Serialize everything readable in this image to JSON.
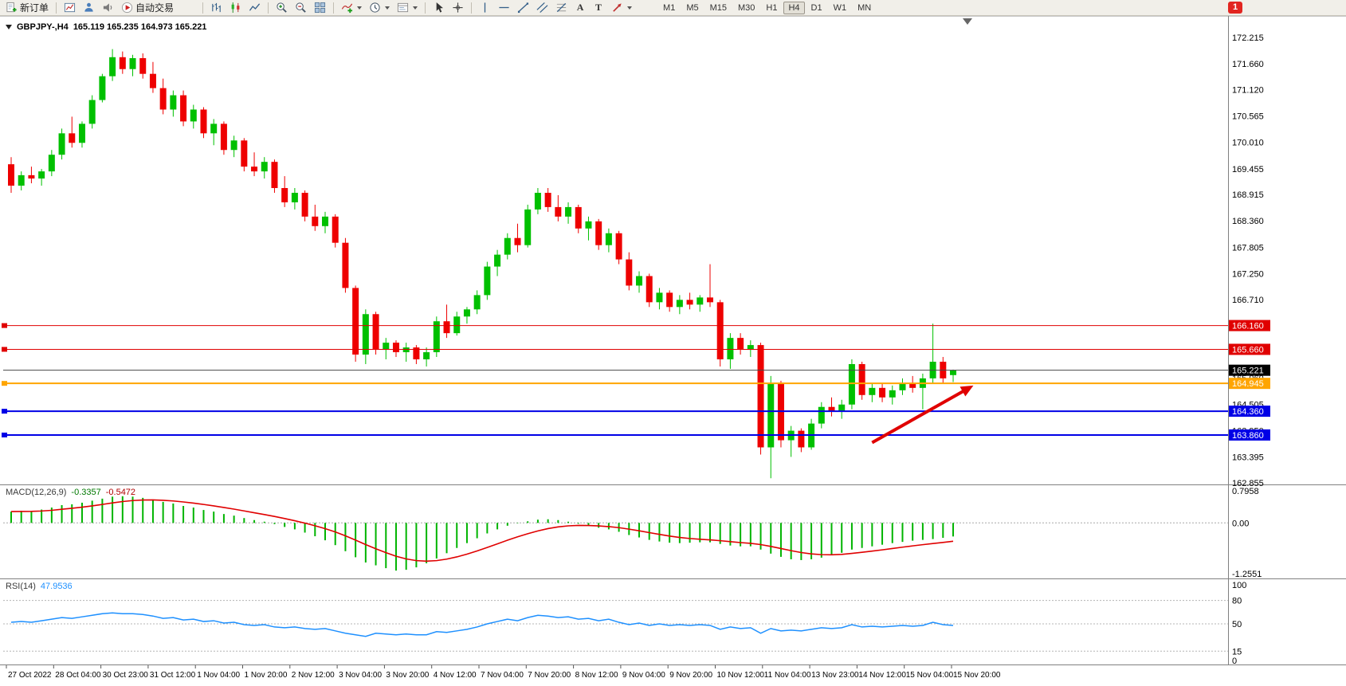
{
  "toolbar": {
    "new_order_label": "新订单",
    "auto_trading_label": "自动交易",
    "text_tool_glyph": "A",
    "label_tool_glyph": "T",
    "timeframes": [
      "M1",
      "M5",
      "M15",
      "M30",
      "H1",
      "H4",
      "D1",
      "W1",
      "MN"
    ],
    "active_timeframe": "H4",
    "notification_badge": "1"
  },
  "chart": {
    "title": {
      "symbol_period": "GBPJPY-,H4",
      "ohlc": "165.119 165.235 164.973 165.221"
    },
    "price_axis_labels": [
      "172.215",
      "171.660",
      "171.120",
      "170.565",
      "170.010",
      "169.455",
      "168.915",
      "168.360",
      "167.805",
      "167.250",
      "166.710",
      "165.060",
      "164.505",
      "163.950",
      "163.395",
      "162.855"
    ],
    "price_tags": [
      {
        "label": "166.160",
        "price": 166.16,
        "bg": "#E00000"
      },
      {
        "label": "165.660",
        "price": 165.66,
        "bg": "#E00000"
      },
      {
        "label": "165.221",
        "price": 165.221,
        "bg": "#000000"
      },
      {
        "label": "164.945",
        "price": 164.945,
        "bg": "#FFA500"
      },
      {
        "label": "164.360",
        "price": 164.36,
        "bg": "#0000E6"
      },
      {
        "label": "163.860",
        "price": 163.86,
        "bg": "#0000E6"
      }
    ],
    "hlines": [
      {
        "price": 166.16,
        "color": "#E00000",
        "width": 1,
        "marker": true
      },
      {
        "price": 165.66,
        "color": "#E00000",
        "width": 1,
        "marker": true
      },
      {
        "price": 165.221,
        "color": "#484848",
        "width": 1,
        "marker": false
      },
      {
        "price": 164.945,
        "color": "#FFA500",
        "width": 2,
        "marker": true
      },
      {
        "price": 164.36,
        "color": "#0000E6",
        "width": 2,
        "marker": true
      },
      {
        "price": 163.86,
        "color": "#0000E6",
        "width": 2,
        "marker": true
      }
    ],
    "trend_arrow": {
      "from_index": 85,
      "from_price": 163.7,
      "to_index": 95,
      "to_price": 164.9,
      "color": "#E00000"
    }
  },
  "indicators": {
    "macd": {
      "name": "MACD(12,26,9)",
      "value_main": "-0.3357",
      "value_signal": "-0.5472",
      "axis_labels": [
        {
          "label": "0.7958",
          "value": 0.7958
        },
        {
          "label": "0.00",
          "value": 0
        },
        {
          "label": "-1.2551",
          "value": -1.2551
        }
      ]
    },
    "rsi": {
      "name": "RSI(14)",
      "value": "47.9536",
      "axis_labels": [
        {
          "label": "100",
          "value": 100
        },
        {
          "label": "80",
          "value": 80
        },
        {
          "label": "50",
          "value": 50
        },
        {
          "label": "15",
          "value": 15
        },
        {
          "label": "0",
          "value": 0
        }
      ],
      "levels": [
        80,
        50,
        15
      ]
    }
  },
  "colors": {
    "bull": "#00C000",
    "bear": "#EE0000",
    "macd_hist": "#00B400",
    "macd_signal": "#E00000",
    "rsi_line": "#1E90FF",
    "background": "#FFFFFF",
    "pane_border": "#808080",
    "axis_text": "#000000"
  },
  "chart_data": {
    "type": "candlestick",
    "symbol": "GBPJPY-",
    "timeframe": "H4",
    "price_range": [
      162.82,
      172.65
    ],
    "time_labels": [
      "27 Oct 2022",
      "28 Oct 04:00",
      "30 Oct 23:00",
      "31 Oct 12:00",
      "1 Nov 04:00",
      "1 Nov 20:00",
      "2 Nov 12:00",
      "3 Nov 04:00",
      "3 Nov 20:00",
      "4 Nov 12:00",
      "7 Nov 04:00",
      "7 Nov 20:00",
      "8 Nov 12:00",
      "9 Nov 04:00",
      "9 Nov 20:00",
      "10 Nov 12:00",
      "11 Nov 04:00",
      "13 Nov 23:00",
      "14 Nov 12:00",
      "15 Nov 04:00",
      "15 Nov 20:00"
    ],
    "candles": [
      [
        169.55,
        169.7,
        168.95,
        169.1
      ],
      [
        169.1,
        169.4,
        169.0,
        169.32
      ],
      [
        169.32,
        169.5,
        169.15,
        169.25
      ],
      [
        169.25,
        169.45,
        169.1,
        169.4
      ],
      [
        169.4,
        169.85,
        169.3,
        169.75
      ],
      [
        169.75,
        170.3,
        169.65,
        170.2
      ],
      [
        170.2,
        170.55,
        169.9,
        170.0
      ],
      [
        170.0,
        170.45,
        169.9,
        170.4
      ],
      [
        170.4,
        171.0,
        170.3,
        170.9
      ],
      [
        170.9,
        171.45,
        170.85,
        171.4
      ],
      [
        171.4,
        171.97,
        171.3,
        171.8
      ],
      [
        171.8,
        171.92,
        171.45,
        171.55
      ],
      [
        171.55,
        171.85,
        171.4,
        171.78
      ],
      [
        171.78,
        171.88,
        171.35,
        171.45
      ],
      [
        171.45,
        171.7,
        171.05,
        171.15
      ],
      [
        171.15,
        171.35,
        170.6,
        170.7
      ],
      [
        170.7,
        171.1,
        170.55,
        171.0
      ],
      [
        171.0,
        171.1,
        170.35,
        170.45
      ],
      [
        170.45,
        170.8,
        170.3,
        170.7
      ],
      [
        170.7,
        170.75,
        170.1,
        170.2
      ],
      [
        170.2,
        170.5,
        169.95,
        170.4
      ],
      [
        170.4,
        170.45,
        169.75,
        169.85
      ],
      [
        169.85,
        170.15,
        169.7,
        170.05
      ],
      [
        170.05,
        170.1,
        169.4,
        169.5
      ],
      [
        169.5,
        169.8,
        169.3,
        169.4
      ],
      [
        169.4,
        169.7,
        169.25,
        169.6
      ],
      [
        169.6,
        169.65,
        168.95,
        169.05
      ],
      [
        169.05,
        169.3,
        168.65,
        168.75
      ],
      [
        168.75,
        169.05,
        168.6,
        168.95
      ],
      [
        168.95,
        169.0,
        168.35,
        168.45
      ],
      [
        168.45,
        168.7,
        168.15,
        168.25
      ],
      [
        168.25,
        168.55,
        168.1,
        168.45
      ],
      [
        168.45,
        168.5,
        167.8,
        167.9
      ],
      [
        167.9,
        168.0,
        166.85,
        166.95
      ],
      [
        166.95,
        167.0,
        165.4,
        165.55
      ],
      [
        165.55,
        166.5,
        165.35,
        166.4
      ],
      [
        166.4,
        166.45,
        165.55,
        165.65
      ],
      [
        165.65,
        165.9,
        165.45,
        165.8
      ],
      [
        165.8,
        165.85,
        165.5,
        165.6
      ],
      [
        165.6,
        165.8,
        165.4,
        165.7
      ],
      [
        165.7,
        165.75,
        165.35,
        165.45
      ],
      [
        165.45,
        165.7,
        165.3,
        165.6
      ],
      [
        165.6,
        166.35,
        165.5,
        166.25
      ],
      [
        166.25,
        166.6,
        165.9,
        166.0
      ],
      [
        166.0,
        166.45,
        165.95,
        166.35
      ],
      [
        166.35,
        166.55,
        166.2,
        166.5
      ],
      [
        166.5,
        166.9,
        166.4,
        166.8
      ],
      [
        166.8,
        167.5,
        166.7,
        167.4
      ],
      [
        167.4,
        167.75,
        167.2,
        167.65
      ],
      [
        167.65,
        168.1,
        167.55,
        168.0
      ],
      [
        168.0,
        168.3,
        167.7,
        167.85
      ],
      [
        167.85,
        168.7,
        167.8,
        168.6
      ],
      [
        168.6,
        169.05,
        168.5,
        168.95
      ],
      [
        168.95,
        169.05,
        168.55,
        168.65
      ],
      [
        168.65,
        168.9,
        168.35,
        168.45
      ],
      [
        168.45,
        168.75,
        168.3,
        168.65
      ],
      [
        168.65,
        168.7,
        168.1,
        168.2
      ],
      [
        168.2,
        168.45,
        167.95,
        168.35
      ],
      [
        168.35,
        168.4,
        167.75,
        167.85
      ],
      [
        167.85,
        168.2,
        167.7,
        168.1
      ],
      [
        168.1,
        168.15,
        167.45,
        167.55
      ],
      [
        167.55,
        167.7,
        166.9,
        167.0
      ],
      [
        167.0,
        167.3,
        166.85,
        167.2
      ],
      [
        167.2,
        167.25,
        166.55,
        166.65
      ],
      [
        166.65,
        166.95,
        166.5,
        166.85
      ],
      [
        166.85,
        166.9,
        166.45,
        166.55
      ],
      [
        166.55,
        166.8,
        166.4,
        166.7
      ],
      [
        166.7,
        166.85,
        166.5,
        166.6
      ],
      [
        166.6,
        166.8,
        166.45,
        166.75
      ],
      [
        166.75,
        167.45,
        166.55,
        166.65
      ],
      [
        166.65,
        166.7,
        165.3,
        165.45
      ],
      [
        165.45,
        166.0,
        165.25,
        165.9
      ],
      [
        165.9,
        166.0,
        165.55,
        165.65
      ],
      [
        165.65,
        165.85,
        165.5,
        165.75
      ],
      [
        165.75,
        165.8,
        163.45,
        163.6
      ],
      [
        163.6,
        165.1,
        162.95,
        164.95
      ],
      [
        164.95,
        165.0,
        163.6,
        163.75
      ],
      [
        163.75,
        164.05,
        163.4,
        163.95
      ],
      [
        163.95,
        164.0,
        163.5,
        163.6
      ],
      [
        163.6,
        164.2,
        163.55,
        164.1
      ],
      [
        164.1,
        164.55,
        164.0,
        164.45
      ],
      [
        164.45,
        164.65,
        164.25,
        164.35
      ],
      [
        164.35,
        164.6,
        164.2,
        164.5
      ],
      [
        164.5,
        165.45,
        164.4,
        165.35
      ],
      [
        165.35,
        165.4,
        164.6,
        164.7
      ],
      [
        164.7,
        164.95,
        164.55,
        164.85
      ],
      [
        164.85,
        164.95,
        164.55,
        164.65
      ],
      [
        164.65,
        164.9,
        164.5,
        164.8
      ],
      [
        164.8,
        165.05,
        164.7,
        164.95
      ],
      [
        164.95,
        165.1,
        164.75,
        164.85
      ],
      [
        164.85,
        165.15,
        164.4,
        165.05
      ],
      [
        165.05,
        166.2,
        164.95,
        165.4
      ],
      [
        165.4,
        165.5,
        164.95,
        165.05
      ],
      [
        165.119,
        165.235,
        164.973,
        165.221
      ]
    ],
    "macd_hist": [
      0.28,
      0.3,
      0.29,
      0.33,
      0.38,
      0.44,
      0.46,
      0.5,
      0.55,
      0.6,
      0.65,
      0.66,
      0.65,
      0.62,
      0.58,
      0.52,
      0.48,
      0.42,
      0.38,
      0.32,
      0.28,
      0.22,
      0.18,
      0.12,
      0.07,
      0.03,
      -0.03,
      -0.1,
      -0.16,
      -0.24,
      -0.33,
      -0.43,
      -0.55,
      -0.7,
      -0.85,
      -0.98,
      -1.05,
      -1.12,
      -1.18,
      -1.16,
      -1.1,
      -1.0,
      -0.88,
      -0.75,
      -0.62,
      -0.5,
      -0.38,
      -0.26,
      -0.16,
      -0.07,
      -0.01,
      0.04,
      0.08,
      0.09,
      0.07,
      0.03,
      -0.02,
      -0.07,
      -0.12,
      -0.16,
      -0.22,
      -0.3,
      -0.36,
      -0.42,
      -0.46,
      -0.49,
      -0.5,
      -0.49,
      -0.48,
      -0.48,
      -0.52,
      -0.56,
      -0.58,
      -0.58,
      -0.66,
      -0.76,
      -0.84,
      -0.9,
      -0.92,
      -0.9,
      -0.86,
      -0.8,
      -0.74,
      -0.66,
      -0.62,
      -0.58,
      -0.54,
      -0.5,
      -0.47,
      -0.44,
      -0.42,
      -0.4,
      -0.37,
      -0.3357
    ],
    "rsi": [
      52,
      53,
      52,
      54,
      56,
      58,
      57,
      59,
      61,
      63,
      64,
      63,
      63,
      62,
      60,
      57,
      58,
      55,
      56,
      53,
      54,
      51,
      52,
      49,
      48,
      49,
      46,
      45,
      46,
      44,
      43,
      44,
      41,
      38,
      36,
      34,
      38,
      37,
      36,
      37,
      36,
      36,
      40,
      39,
      41,
      43,
      46,
      50,
      53,
      56,
      54,
      58,
      61,
      60,
      58,
      59,
      56,
      57,
      54,
      56,
      52,
      49,
      51,
      48,
      50,
      48,
      49,
      48,
      49,
      48,
      43,
      46,
      44,
      45,
      38,
      44,
      41,
      42,
      41,
      43,
      45,
      44,
      45,
      49,
      46,
      47,
      46,
      47,
      48,
      47,
      48,
      52,
      49,
      47.95
    ]
  }
}
